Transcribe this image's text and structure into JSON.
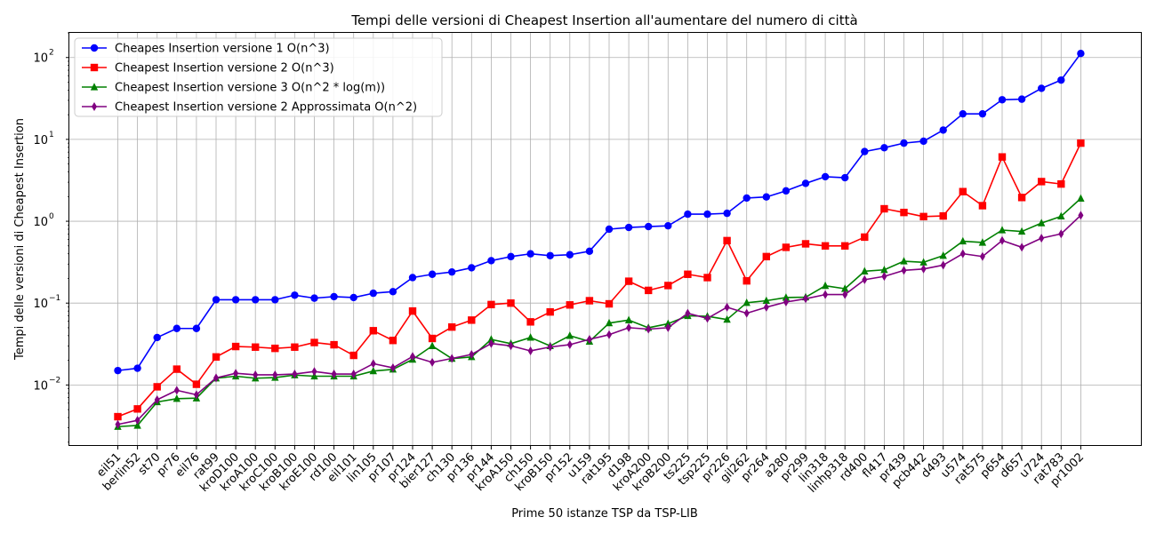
{
  "chart_data": {
    "type": "line",
    "title": "Tempi delle versioni di Cheapest Insertion all'aumentare del numero di città",
    "xlabel": "Prime 50 istanze TSP da TSP-LIB",
    "ylabel": "Tempi delle versioni di Cheapest Insertion",
    "yscale": "log",
    "ylim": [
      0.0018,
      200
    ],
    "yticks": [
      0.01,
      0.1,
      1,
      10,
      100
    ],
    "ytick_labels": [
      {
        "base": "10",
        "exp": "−2"
      },
      {
        "base": "10",
        "exp": "−1"
      },
      {
        "base": "10",
        "exp": "0"
      },
      {
        "base": "10",
        "exp": "1"
      },
      {
        "base": "10",
        "exp": "2"
      }
    ],
    "grid": true,
    "legend_position": "top-left",
    "categories": [
      "eil51",
      "berlin52",
      "st70",
      "pr76",
      "eil76",
      "rat99",
      "kroD100",
      "kroA100",
      "kroC100",
      "kroB100",
      "kroE100",
      "rd100",
      "eil101",
      "lin105",
      "pr107",
      "pr124",
      "bier127",
      "ch130",
      "pr136",
      "pr144",
      "kroA150",
      "ch150",
      "kroB150",
      "pr152",
      "u159",
      "rat195",
      "d198",
      "kroA200",
      "kroB200",
      "ts225",
      "tsp225",
      "pr226",
      "gil262",
      "pr264",
      "a280",
      "pr299",
      "lin318",
      "linhp318",
      "rd400",
      "fl417",
      "pr439",
      "pcb442",
      "d493",
      "u574",
      "rat575",
      "p654",
      "d657",
      "u724",
      "rat783",
      "pr1002"
    ],
    "series": [
      {
        "name": "Cheapes Insertion versione 1 O(n^3)",
        "color": "#0000ff",
        "marker": "circle",
        "values": [
          0.015,
          0.016,
          0.038,
          0.049,
          0.049,
          0.11,
          0.11,
          0.11,
          0.11,
          0.125,
          0.115,
          0.12,
          0.117,
          0.132,
          0.138,
          0.205,
          0.225,
          0.24,
          0.27,
          0.33,
          0.37,
          0.4,
          0.38,
          0.39,
          0.43,
          0.8,
          0.84,
          0.86,
          0.88,
          1.22,
          1.22,
          1.25,
          1.92,
          1.98,
          2.35,
          2.9,
          3.5,
          3.4,
          7.1,
          7.9,
          9.0,
          9.5,
          13.0,
          20.5,
          20.5,
          30.5,
          31.0,
          42.0,
          53.0,
          112.0
        ]
      },
      {
        "name": "Cheapest Insertion versione 2 O(n^3)",
        "color": "#ff0000",
        "marker": "square",
        "values": [
          0.0041,
          0.0051,
          0.0095,
          0.0156,
          0.0102,
          0.022,
          0.0295,
          0.029,
          0.028,
          0.029,
          0.033,
          0.031,
          0.023,
          0.046,
          0.035,
          0.08,
          0.037,
          0.051,
          0.062,
          0.096,
          0.1,
          0.059,
          0.078,
          0.095,
          0.107,
          0.098,
          0.185,
          0.143,
          0.164,
          0.225,
          0.205,
          0.58,
          0.187,
          0.37,
          0.48,
          0.53,
          0.5,
          0.5,
          0.64,
          1.42,
          1.28,
          1.14,
          1.16,
          2.3,
          1.55,
          6.1,
          1.95,
          3.05,
          2.85,
          9.0
        ]
      },
      {
        "name": "Cheapest Insertion versione 3 O(n^2 * log(m))",
        "color": "#008000",
        "marker": "triangle",
        "values": [
          0.0031,
          0.0032,
          0.0062,
          0.0068,
          0.0069,
          0.0121,
          0.0128,
          0.0121,
          0.0123,
          0.0132,
          0.0128,
          0.0128,
          0.0128,
          0.0148,
          0.0155,
          0.0205,
          0.03,
          0.021,
          0.022,
          0.036,
          0.032,
          0.038,
          0.03,
          0.04,
          0.034,
          0.057,
          0.062,
          0.05,
          0.056,
          0.07,
          0.069,
          0.063,
          0.101,
          0.107,
          0.117,
          0.118,
          0.163,
          0.15,
          0.245,
          0.255,
          0.325,
          0.315,
          0.38,
          0.57,
          0.55,
          0.78,
          0.75,
          0.95,
          1.15,
          1.9
        ]
      },
      {
        "name": "Cheapest Insertion versione 2 Approssimata O(n^2)",
        "color": "#800080",
        "marker": "diamond",
        "values": [
          0.0033,
          0.0037,
          0.0066,
          0.0086,
          0.0076,
          0.0122,
          0.0139,
          0.0133,
          0.0133,
          0.0136,
          0.0146,
          0.0136,
          0.0136,
          0.0182,
          0.0162,
          0.0223,
          0.0189,
          0.0211,
          0.0236,
          0.0321,
          0.0301,
          0.0261,
          0.0291,
          0.0311,
          0.0361,
          0.0411,
          0.0501,
          0.0481,
          0.0501,
          0.0751,
          0.0651,
          0.0891,
          0.0751,
          0.0891,
          0.1031,
          0.1131,
          0.1271,
          0.1271,
          0.1931,
          0.2121,
          0.2511,
          0.2611,
          0.2911,
          0.4011,
          0.3711,
          0.5811,
          0.4811,
          0.6211,
          0.7011,
          1.1811
        ]
      }
    ]
  }
}
